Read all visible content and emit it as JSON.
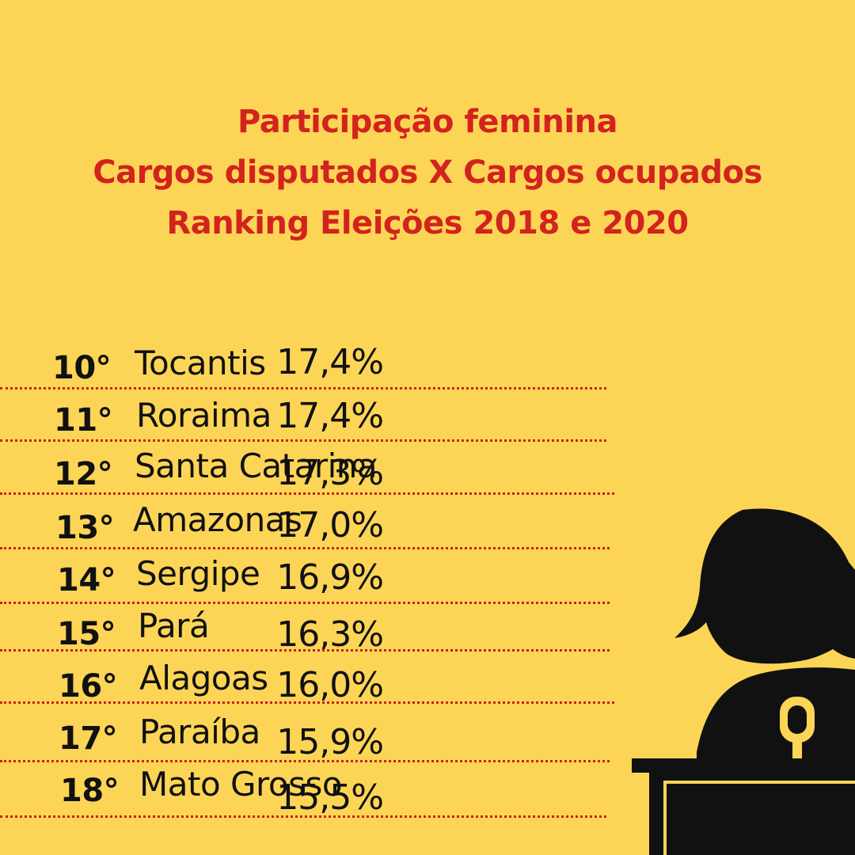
{
  "header": {
    "line1": "Participação feminina",
    "line2": "Cargos disputados X Cargos ocupados",
    "line3": "Ranking Eleições 2018 e 2020"
  },
  "ranking": [
    {
      "rank": "10°",
      "state": "Tocantis",
      "percent": "17,4%"
    },
    {
      "rank": "11°",
      "state": "Roraima",
      "percent": "17,4%"
    },
    {
      "rank": "12°",
      "state": "Santa Catarina",
      "percent": "17,3%"
    },
    {
      "rank": "13°",
      "state": "Amazonas",
      "percent": "17,0%"
    },
    {
      "rank": "14°",
      "state": "Sergipe",
      "percent": "16,9%"
    },
    {
      "rank": "15°",
      "state": "Pará",
      "percent": "16,3%"
    },
    {
      "rank": "16°",
      "state": "Alagoas",
      "percent": "16,0%"
    },
    {
      "rank": "17°",
      "state": "Paraíba",
      "percent": "15,9%"
    },
    {
      "rank": "18°",
      "state": "Mato Grosso",
      "percent": "15,5%"
    }
  ],
  "illustration": {
    "icon": "woman-at-podium-icon"
  },
  "colors": {
    "background": "#FDD556",
    "title": "#D2231E",
    "divider": "#C8201C",
    "text": "#111111"
  }
}
